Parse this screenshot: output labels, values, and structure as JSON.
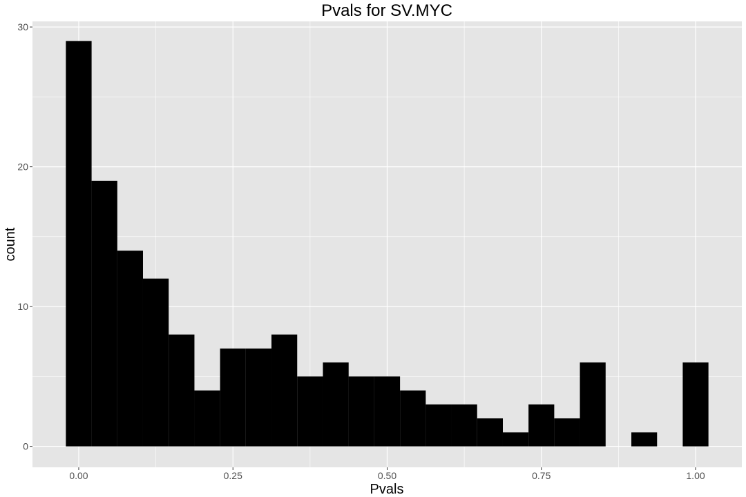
{
  "chart_data": {
    "type": "bar",
    "title": "Pvals for SV.MYC",
    "xlabel": "Pvals",
    "ylabel": "count",
    "bin_width": 0.0417,
    "x": [
      0.0,
      0.0417,
      0.0833,
      0.125,
      0.1667,
      0.2083,
      0.25,
      0.2917,
      0.3333,
      0.375,
      0.4167,
      0.4583,
      0.5,
      0.5417,
      0.5833,
      0.625,
      0.6667,
      0.7083,
      0.75,
      0.7917,
      0.8333,
      0.875,
      0.9167,
      0.9583,
      1.0
    ],
    "values": [
      29,
      19,
      14,
      12,
      8,
      4,
      7,
      7,
      8,
      5,
      6,
      5,
      5,
      4,
      3,
      3,
      2,
      1,
      3,
      2,
      6,
      0,
      1,
      0,
      6
    ],
    "xlim": [
      -0.075,
      1.075
    ],
    "ylim": [
      -1.5,
      30.4
    ],
    "x_ticks": [
      0,
      0.25,
      0.5,
      0.75,
      1.0
    ],
    "x_tick_labels": [
      "0.00",
      "0.25",
      "0.50",
      "0.75",
      "1.00"
    ],
    "y_ticks": [
      0,
      10,
      20,
      30
    ],
    "y_tick_labels": [
      "0",
      "10",
      "20",
      "30"
    ],
    "grid": true,
    "colors": {
      "panel": "#e5e5e5",
      "grid_major": "#ffffff",
      "bar": "#000000"
    }
  }
}
